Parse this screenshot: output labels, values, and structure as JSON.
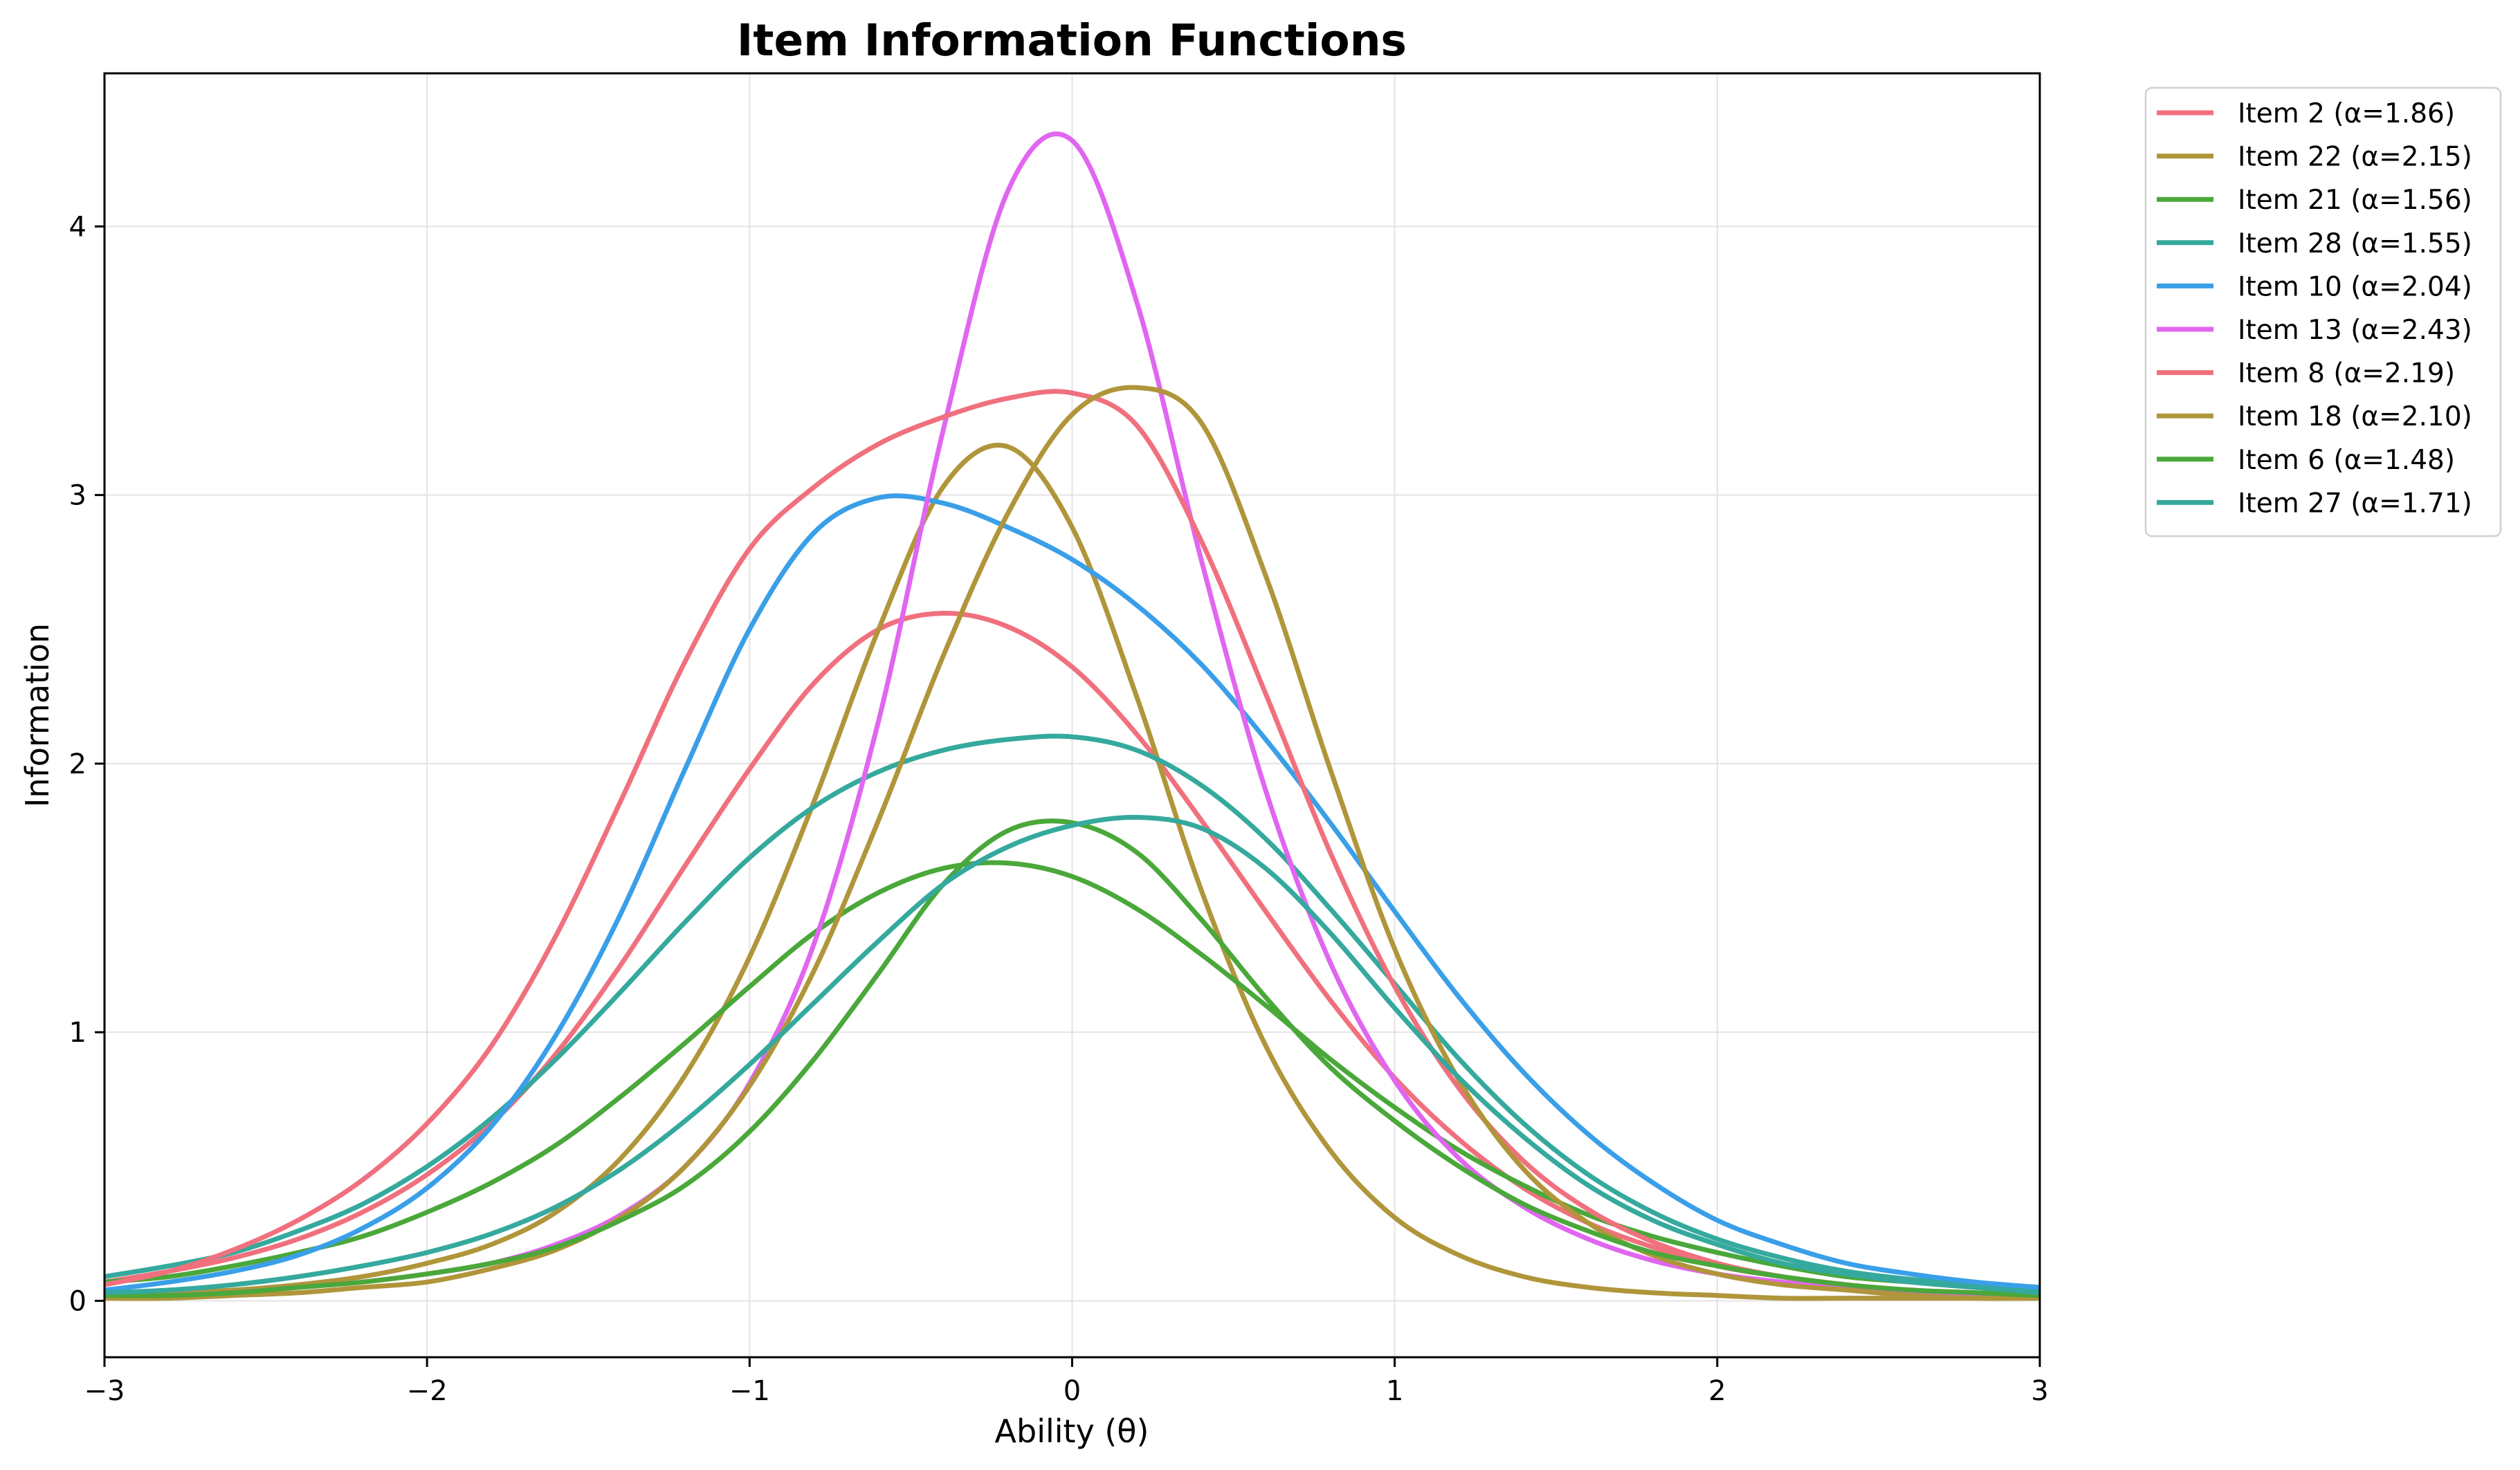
{
  "chart_data": {
    "type": "line",
    "title": "Item Information Functions",
    "xlabel": "Ability (θ)",
    "ylabel": "Information",
    "xlim": [
      -3,
      3
    ],
    "ylim": [
      -0.21,
      4.57
    ],
    "xticks": [
      "−3",
      "−2",
      "−1",
      "0",
      "1",
      "2",
      "3"
    ],
    "xtick_values": [
      -3,
      -2,
      -1,
      0,
      1,
      2,
      3
    ],
    "yticks": [
      "0",
      "1",
      "2",
      "3",
      "4"
    ],
    "ytick_values": [
      0,
      1,
      2,
      3,
      4
    ],
    "grid": true,
    "legend_position": "outside-top-right",
    "x": [
      -3.0,
      -2.8,
      -2.6,
      -2.4,
      -2.2,
      -2.0,
      -1.8,
      -1.6,
      -1.4,
      -1.2,
      -1.0,
      -0.8,
      -0.6,
      -0.4,
      -0.2,
      0.0,
      0.2,
      0.4,
      0.6,
      0.8,
      1.0,
      1.2,
      1.4,
      1.6,
      1.8,
      2.0,
      2.2,
      2.4,
      2.6,
      2.8,
      3.0
    ],
    "series": [
      {
        "name": "Item 2 (α=1.86)",
        "color": "#f0707d",
        "values": [
          0.07,
          0.11,
          0.16,
          0.23,
          0.33,
          0.47,
          0.66,
          0.92,
          1.25,
          1.62,
          1.98,
          2.3,
          2.5,
          2.56,
          2.51,
          2.36,
          2.11,
          1.79,
          1.45,
          1.12,
          0.83,
          0.6,
          0.42,
          0.29,
          0.2,
          0.13,
          0.09,
          0.06,
          0.04,
          0.03,
          0.02
        ]
      },
      {
        "name": "Item 22 (α=2.15)",
        "color": "#b0953a",
        "values": [
          0.02,
          0.03,
          0.04,
          0.06,
          0.09,
          0.14,
          0.21,
          0.33,
          0.53,
          0.84,
          1.28,
          1.86,
          2.5,
          3.03,
          3.18,
          2.88,
          2.25,
          1.53,
          0.95,
          0.56,
          0.31,
          0.17,
          0.09,
          0.05,
          0.03,
          0.02,
          0.01,
          0.01,
          0.01,
          0.01,
          0.01
        ]
      },
      {
        "name": "Item 21 (α=1.56)",
        "color": "#4aa83a",
        "values": [
          0.07,
          0.09,
          0.13,
          0.18,
          0.24,
          0.33,
          0.44,
          0.58,
          0.76,
          0.96,
          1.17,
          1.37,
          1.52,
          1.61,
          1.63,
          1.58,
          1.46,
          1.29,
          1.1,
          0.9,
          0.72,
          0.56,
          0.43,
          0.32,
          0.24,
          0.18,
          0.13,
          0.09,
          0.07,
          0.05,
          0.04
        ]
      },
      {
        "name": "Item 28 (α=1.55)",
        "color": "#35a99d",
        "values": [
          0.09,
          0.13,
          0.18,
          0.26,
          0.36,
          0.5,
          0.68,
          0.9,
          1.15,
          1.41,
          1.65,
          1.84,
          1.97,
          2.05,
          2.09,
          2.1,
          2.05,
          1.92,
          1.72,
          1.46,
          1.18,
          0.9,
          0.66,
          0.47,
          0.33,
          0.23,
          0.16,
          0.11,
          0.08,
          0.06,
          0.04
        ]
      },
      {
        "name": "Item 10 (α=2.04)",
        "color": "#3a9fe8",
        "values": [
          0.04,
          0.07,
          0.11,
          0.17,
          0.27,
          0.42,
          0.65,
          0.99,
          1.44,
          1.98,
          2.5,
          2.86,
          2.99,
          2.97,
          2.88,
          2.76,
          2.59,
          2.37,
          2.09,
          1.78,
          1.45,
          1.13,
          0.85,
          0.62,
          0.44,
          0.3,
          0.21,
          0.14,
          0.1,
          0.07,
          0.05
        ]
      },
      {
        "name": "Item 13 (α=2.43)",
        "color": "#e066f0",
        "values": [
          0.01,
          0.02,
          0.03,
          0.05,
          0.07,
          0.1,
          0.14,
          0.21,
          0.32,
          0.5,
          0.81,
          1.33,
          2.16,
          3.24,
          4.13,
          4.32,
          3.72,
          2.76,
          1.9,
          1.26,
          0.82,
          0.53,
          0.35,
          0.23,
          0.15,
          0.1,
          0.07,
          0.05,
          0.03,
          0.02,
          0.02
        ]
      },
      {
        "name": "Item 8 (α=2.19)",
        "color": "#f0707d",
        "values": [
          0.06,
          0.11,
          0.19,
          0.3,
          0.45,
          0.66,
          0.95,
          1.36,
          1.86,
          2.38,
          2.8,
          3.03,
          3.19,
          3.29,
          3.36,
          3.38,
          3.26,
          2.83,
          2.26,
          1.67,
          1.17,
          0.79,
          0.52,
          0.34,
          0.22,
          0.14,
          0.09,
          0.06,
          0.04,
          0.03,
          0.02
        ]
      },
      {
        "name": "Item 18 (α=2.10)",
        "color": "#b0953a",
        "values": [
          0.01,
          0.01,
          0.02,
          0.03,
          0.05,
          0.07,
          0.12,
          0.19,
          0.31,
          0.5,
          0.8,
          1.23,
          1.79,
          2.4,
          2.93,
          3.3,
          3.4,
          3.27,
          2.7,
          1.98,
          1.31,
          0.82,
          0.49,
          0.29,
          0.17,
          0.1,
          0.06,
          0.04,
          0.02,
          0.01,
          0.01
        ]
      },
      {
        "name": "Item 6 (α=1.48)",
        "color": "#4aa83a",
        "values": [
          0.02,
          0.02,
          0.03,
          0.05,
          0.07,
          0.1,
          0.14,
          0.2,
          0.3,
          0.43,
          0.63,
          0.9,
          1.22,
          1.55,
          1.75,
          1.78,
          1.67,
          1.42,
          1.13,
          0.87,
          0.67,
          0.5,
          0.36,
          0.26,
          0.18,
          0.13,
          0.09,
          0.06,
          0.04,
          0.03,
          0.02
        ]
      },
      {
        "name": "Item 27 (α=1.71)",
        "color": "#35a99d",
        "values": [
          0.03,
          0.04,
          0.06,
          0.09,
          0.13,
          0.18,
          0.25,
          0.35,
          0.49,
          0.67,
          0.88,
          1.11,
          1.34,
          1.55,
          1.69,
          1.77,
          1.8,
          1.76,
          1.61,
          1.37,
          1.09,
          0.83,
          0.61,
          0.43,
          0.3,
          0.21,
          0.14,
          0.1,
          0.07,
          0.05,
          0.03
        ]
      }
    ]
  }
}
